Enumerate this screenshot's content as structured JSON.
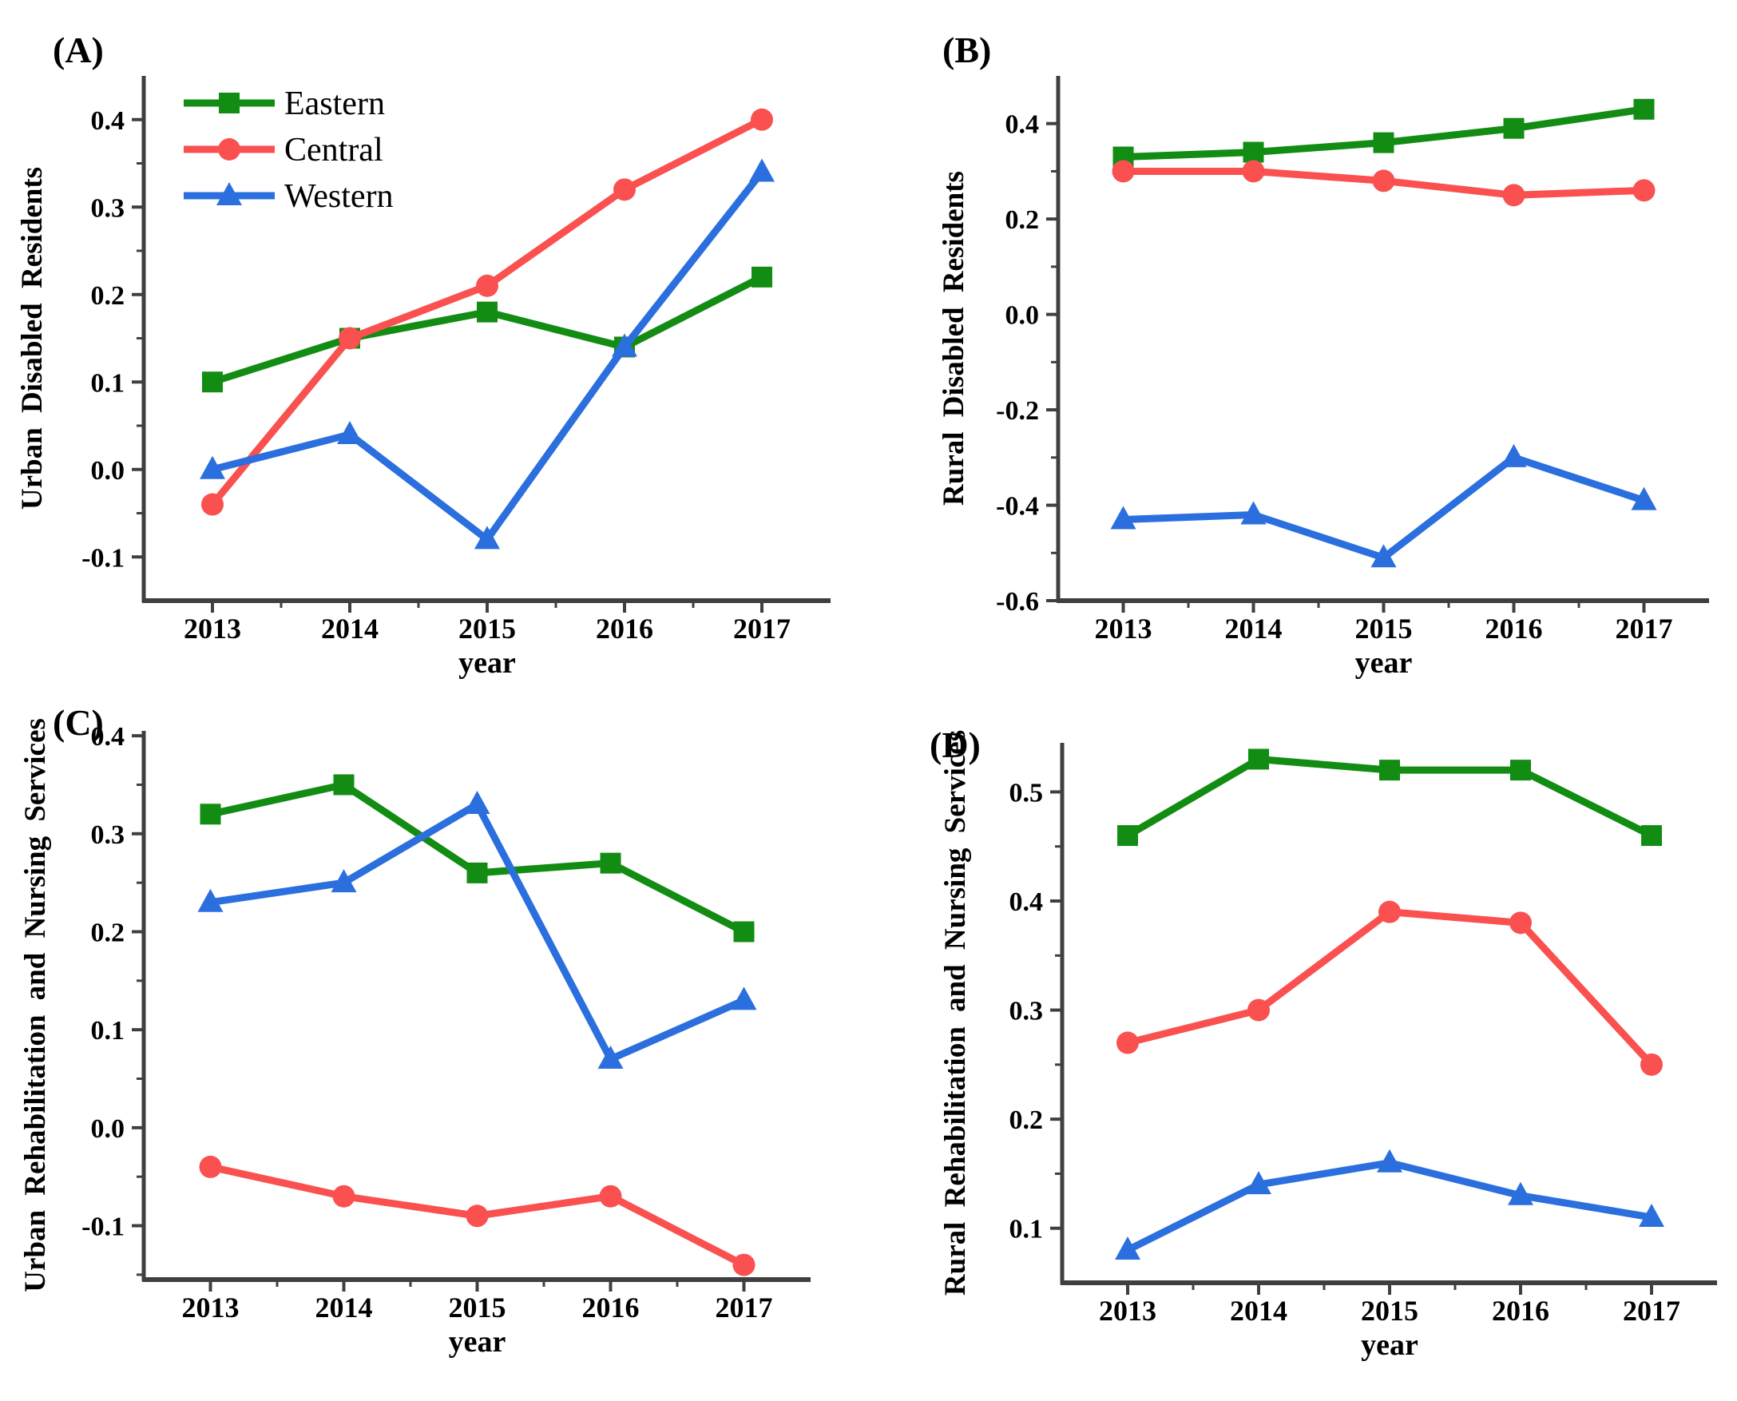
{
  "figure": {
    "background": "#ffffff",
    "xlabel": "year"
  },
  "colors": {
    "eastern": "#128c12",
    "central": "#fa5050",
    "western": "#2b6fdf",
    "axis": "#3f3f3f",
    "text": "#000000"
  },
  "legend": {
    "position": "top-left-panel-A",
    "items": [
      {
        "label": "Eastern",
        "series_key": "eastern",
        "marker": "square"
      },
      {
        "label": "Central",
        "series_key": "central",
        "marker": "circle"
      },
      {
        "label": "Western",
        "series_key": "western",
        "marker": "triangle"
      }
    ]
  },
  "chart_data": [
    {
      "type": "line",
      "panel_label": "(A)",
      "ylabel": "Urban Disabled Residents",
      "xlabel": "year",
      "categories": [
        2013,
        2014,
        2015,
        2016,
        2017
      ],
      "xtick_labels": [
        "2013",
        "2014",
        "2015",
        "2016",
        "2017"
      ],
      "xlim": [
        2012.5,
        2017.5
      ],
      "ylim": [
        -0.15,
        0.45
      ],
      "yticks": [
        {
          "v": 0.4,
          "label": "0.4"
        },
        {
          "v": 0.3,
          "label": "0.3"
        },
        {
          "v": 0.2,
          "label": "0.2"
        },
        {
          "v": 0.1,
          "label": "0.1"
        },
        {
          "v": 0.0,
          "label": "0.0"
        },
        {
          "v": -0.1,
          "label": "-0.1"
        }
      ],
      "grid": false,
      "legend_visible": true,
      "series": [
        {
          "name": "Eastern",
          "color_key": "eastern",
          "marker": "square",
          "values": [
            0.1,
            0.15,
            0.18,
            0.14,
            0.22
          ]
        },
        {
          "name": "Central",
          "color_key": "central",
          "marker": "circle",
          "values": [
            -0.04,
            0.15,
            0.21,
            0.32,
            0.4
          ]
        },
        {
          "name": "Western",
          "color_key": "western",
          "marker": "triangle",
          "values": [
            0.0,
            0.04,
            -0.08,
            0.14,
            0.34
          ]
        }
      ]
    },
    {
      "type": "line",
      "panel_label": "(B)",
      "ylabel": "Rural Disabled Residents",
      "xlabel": "year",
      "categories": [
        2013,
        2014,
        2015,
        2016,
        2017
      ],
      "xtick_labels": [
        "2013",
        "2014",
        "2015",
        "2016",
        "2017"
      ],
      "xlim": [
        2012.5,
        2017.5
      ],
      "ylim": [
        -0.6,
        0.5
      ],
      "yticks": [
        {
          "v": 0.4,
          "label": "0.4"
        },
        {
          "v": 0.2,
          "label": "0.2"
        },
        {
          "v": 0.0,
          "label": "0.0"
        },
        {
          "v": -0.2,
          "label": "-0.2"
        },
        {
          "v": -0.4,
          "label": "-0.4"
        },
        {
          "v": -0.6,
          "label": "-0.6"
        }
      ],
      "grid": false,
      "legend_visible": false,
      "series": [
        {
          "name": "Eastern",
          "color_key": "eastern",
          "marker": "square",
          "values": [
            0.33,
            0.34,
            0.36,
            0.39,
            0.43
          ]
        },
        {
          "name": "Central",
          "color_key": "central",
          "marker": "circle",
          "values": [
            0.3,
            0.3,
            0.28,
            0.25,
            0.26
          ]
        },
        {
          "name": "Western",
          "color_key": "western",
          "marker": "triangle",
          "values": [
            -0.43,
            -0.42,
            -0.51,
            -0.3,
            -0.39
          ]
        }
      ]
    },
    {
      "type": "line",
      "panel_label": "(C)",
      "ylabel": "Urban Rehabilitation and Nursing Services",
      "xlabel": "year",
      "categories": [
        2013,
        2014,
        2015,
        2016,
        2017
      ],
      "xtick_labels": [
        "2013",
        "2014",
        "2015",
        "2016",
        "2017"
      ],
      "xlim": [
        2012.5,
        2017.5
      ],
      "ylim": [
        -0.155,
        0.405
      ],
      "yticks": [
        {
          "v": 0.4,
          "label": "0.4"
        },
        {
          "v": 0.3,
          "label": "0.3"
        },
        {
          "v": 0.2,
          "label": "0.2"
        },
        {
          "v": 0.1,
          "label": "0.1"
        },
        {
          "v": 0.0,
          "label": "0.0"
        },
        {
          "v": -0.1,
          "label": "-0.1"
        }
      ],
      "grid": false,
      "legend_visible": false,
      "series": [
        {
          "name": "Eastern",
          "color_key": "eastern",
          "marker": "square",
          "values": [
            0.32,
            0.35,
            0.26,
            0.27,
            0.2
          ]
        },
        {
          "name": "Central",
          "color_key": "central",
          "marker": "circle",
          "values": [
            -0.04,
            -0.07,
            -0.09,
            -0.07,
            -0.14
          ]
        },
        {
          "name": "Western",
          "color_key": "western",
          "marker": "triangle",
          "values": [
            0.23,
            0.25,
            0.33,
            0.07,
            0.13
          ]
        }
      ]
    },
    {
      "type": "line",
      "panel_label": "(D)",
      "ylabel": "Rural Rehabilitation and Nursing Services",
      "xlabel": "year",
      "categories": [
        2013,
        2014,
        2015,
        2016,
        2017
      ],
      "xtick_labels": [
        "2013",
        "2014",
        "2015",
        "2016",
        "2017"
      ],
      "xlim": [
        2012.5,
        2017.5
      ],
      "ylim": [
        0.05,
        0.545
      ],
      "yticks": [
        {
          "v": 0.5,
          "label": "0.5"
        },
        {
          "v": 0.4,
          "label": "0.4"
        },
        {
          "v": 0.3,
          "label": "0.3"
        },
        {
          "v": 0.2,
          "label": "0.2"
        },
        {
          "v": 0.1,
          "label": "0.1"
        }
      ],
      "grid": false,
      "legend_visible": false,
      "series": [
        {
          "name": "Eastern",
          "color_key": "eastern",
          "marker": "square",
          "values": [
            0.46,
            0.53,
            0.52,
            0.52,
            0.46
          ]
        },
        {
          "name": "Central",
          "color_key": "central",
          "marker": "circle",
          "values": [
            0.27,
            0.3,
            0.39,
            0.38,
            0.25
          ]
        },
        {
          "name": "Western",
          "color_key": "western",
          "marker": "triangle",
          "values": [
            0.08,
            0.14,
            0.16,
            0.13,
            0.11
          ]
        }
      ]
    }
  ]
}
